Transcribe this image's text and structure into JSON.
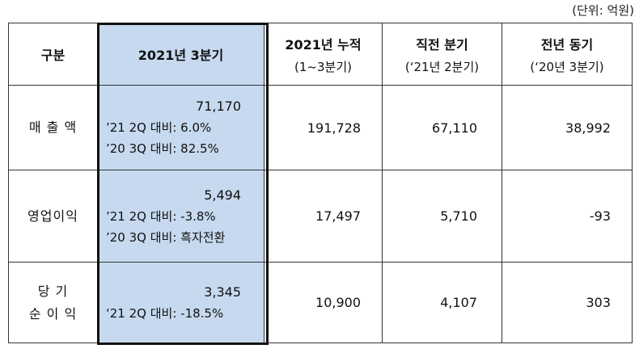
{
  "unit": "(단위: 억원)",
  "headers": {
    "col1": "구분",
    "col2": "2021년 3분기",
    "col3": {
      "title": "2021년 누적",
      "sub": "(1~3분기)"
    },
    "col4": {
      "title": "직전 분기",
      "sub": "(‘21년 2분기)"
    },
    "col5": {
      "title": "전년 동기",
      "sub": "(‘20년 3분기)"
    }
  },
  "rows": [
    {
      "label": [
        "매 출 액"
      ],
      "q3": {
        "main": "71,170",
        "notes": [
          "’21 2Q 대비:  6.0%",
          "’20 3Q 대비:  82.5%"
        ]
      },
      "cum": "191,728",
      "prev": "67,110",
      "yoy": "38,992"
    },
    {
      "label": [
        "영업이익"
      ],
      "q3": {
        "main": "5,494",
        "notes": [
          "’21 2Q 대비:  -3.8%",
          "’20 3Q 대비: 흑자전환"
        ]
      },
      "cum": "17,497",
      "prev": "5,710",
      "yoy": "-93"
    },
    {
      "label": [
        "당 기",
        "순 이 익"
      ],
      "q3": {
        "main": "3,345",
        "notes": [
          "‘21 2Q 대비:  -18.5%"
        ]
      },
      "cum": "10,900",
      "prev": "4,107",
      "yoy": "303"
    }
  ]
}
